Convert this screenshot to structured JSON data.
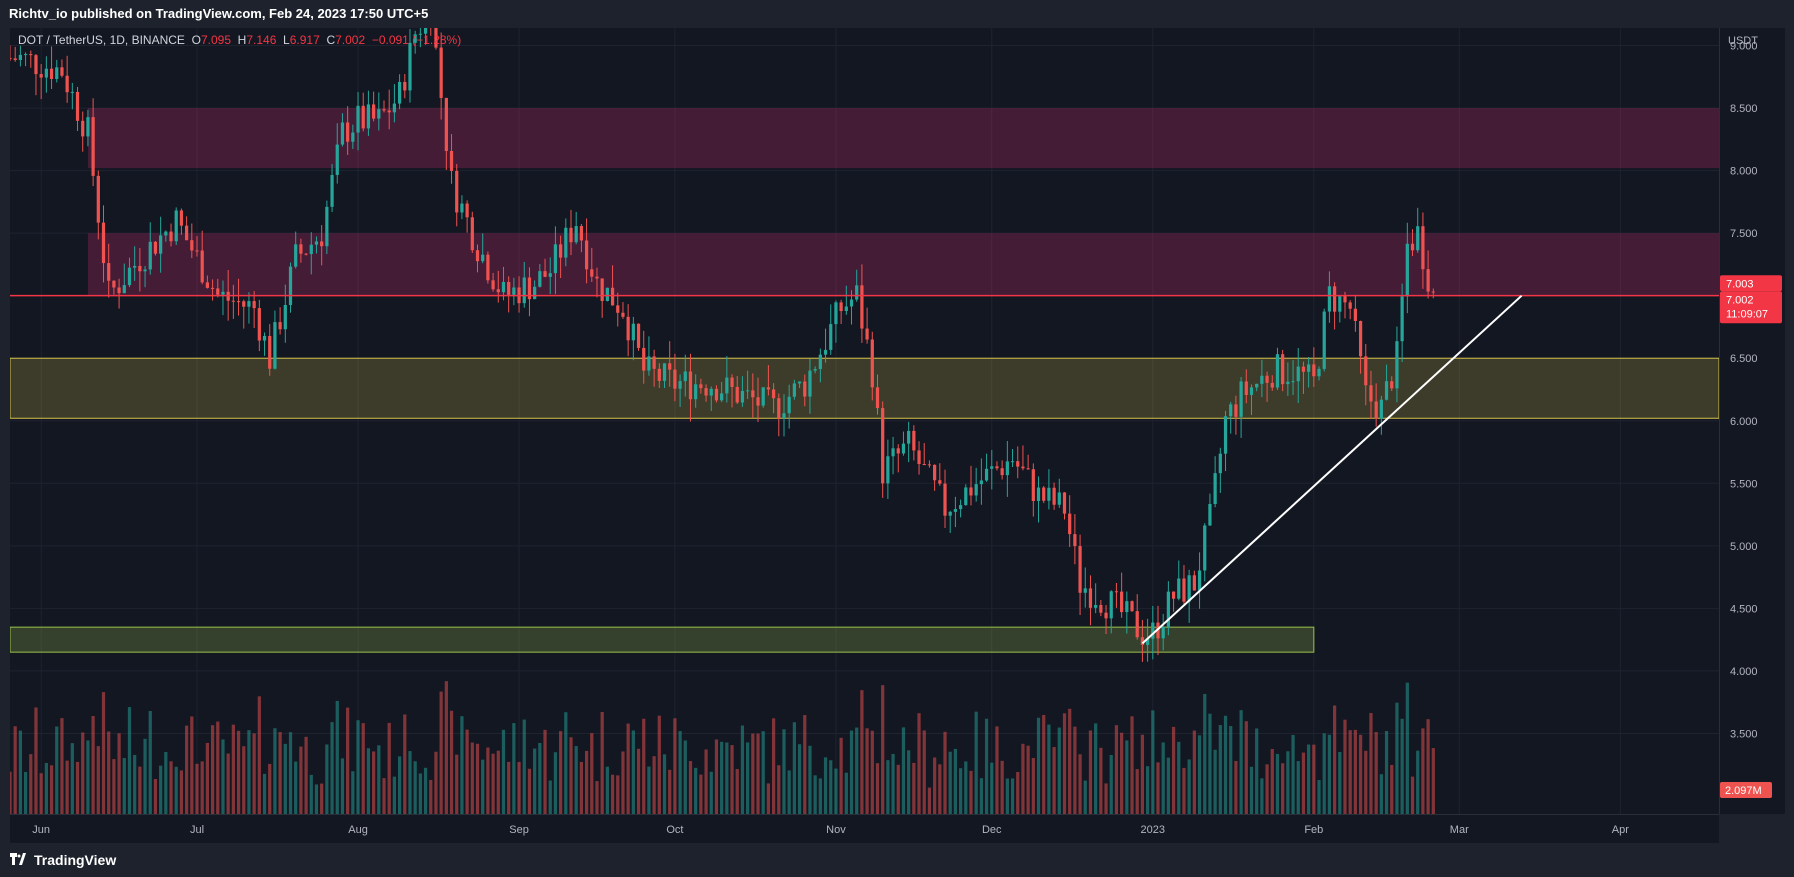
{
  "header": {
    "published_text": "Richtv_io published on TradingView.com, Feb 24, 2023 17:50 UTC+5"
  },
  "legend": {
    "symbol": "DOT / TetherUS, 1D, BINANCE",
    "open_label": "O",
    "open": "7.095",
    "high_label": "H",
    "high": "7.146",
    "low_label": "L",
    "low": "6.917",
    "close_label": "C",
    "close": "7.002",
    "change": "−0.091 (−1.28%)"
  },
  "price_scale": {
    "currency": "USDT",
    "last_price": "7.003",
    "current_price": "7.002",
    "countdown": "11:09:07",
    "volume_label": "2.097M"
  },
  "footer": {
    "brand": "TradingView"
  },
  "colors": {
    "up": "#26a69a",
    "down": "#ef5350",
    "resistance_zone": "#b2275f",
    "support_zone": "#d4c24a",
    "lower_zone": "#9ac14a",
    "price_line": "#f23645",
    "trendline": "#ffffff",
    "background": "#131722"
  },
  "chart_data": {
    "type": "candlestick",
    "symbol": "DOT / TetherUS",
    "interval": "1D",
    "exchange": "BINANCE",
    "y_axis": {
      "ticks": [
        "3.500",
        "4.000",
        "4.500",
        "5.000",
        "5.500",
        "6.000",
        "6.500",
        "7.000",
        "7.500",
        "8.000",
        "8.500",
        "9.000"
      ],
      "ylim": [
        3.0,
        9.3
      ],
      "unit": "USDT"
    },
    "x_axis": {
      "ticks": [
        "Jun",
        "Jul",
        "Aug",
        "Sep",
        "Oct",
        "Nov",
        "Dec",
        "2023",
        "Feb",
        "Mar",
        "Apr"
      ],
      "range": [
        "2022-05-26",
        "2023-04-20"
      ]
    },
    "price_anchors": [
      [
        "2022-05-28",
        8.9
      ],
      [
        "2022-06-05",
        8.8
      ],
      [
        "2022-06-10",
        8.3
      ],
      [
        "2022-06-14",
        7.0
      ],
      [
        "2022-06-20",
        7.3
      ],
      [
        "2022-06-27",
        7.6
      ],
      [
        "2022-07-01",
        7.3
      ],
      [
        "2022-07-05",
        7.0
      ],
      [
        "2022-07-12",
        6.9
      ],
      [
        "2022-07-15",
        6.5
      ],
      [
        "2022-07-20",
        7.3
      ],
      [
        "2022-07-25",
        7.5
      ],
      [
        "2022-07-29",
        8.3
      ],
      [
        "2022-08-01",
        8.4
      ],
      [
        "2022-08-05",
        8.4
      ],
      [
        "2022-08-09",
        8.6
      ],
      [
        "2022-08-12",
        9.1
      ],
      [
        "2022-08-15",
        9.3
      ],
      [
        "2022-08-19",
        7.9
      ],
      [
        "2022-08-24",
        7.4
      ],
      [
        "2022-08-29",
        7.0
      ],
      [
        "2022-09-04",
        7.1
      ],
      [
        "2022-09-07",
        7.2
      ],
      [
        "2022-09-12",
        7.6
      ],
      [
        "2022-09-16",
        7.1
      ],
      [
        "2022-09-21",
        6.9
      ],
      [
        "2022-09-25",
        6.4
      ],
      [
        "2022-10-01",
        6.3
      ],
      [
        "2022-10-08",
        6.3
      ],
      [
        "2022-10-14",
        6.2
      ],
      [
        "2022-10-20",
        6.1
      ],
      [
        "2022-10-26",
        6.3
      ],
      [
        "2022-11-02",
        6.9
      ],
      [
        "2022-11-05",
        7.0
      ],
      [
        "2022-11-08",
        6.4
      ],
      [
        "2022-11-10",
        5.6
      ],
      [
        "2022-11-15",
        5.8
      ],
      [
        "2022-11-22",
        5.3
      ],
      [
        "2022-11-28",
        5.5
      ],
      [
        "2022-12-05",
        5.7
      ],
      [
        "2022-12-10",
        5.4
      ],
      [
        "2022-12-15",
        5.3
      ],
      [
        "2022-12-18",
        4.7
      ],
      [
        "2022-12-25",
        4.5
      ],
      [
        "2022-12-30",
        4.3
      ],
      [
        "2023-01-01",
        4.3
      ],
      [
        "2023-01-05",
        4.6
      ],
      [
        "2023-01-09",
        4.7
      ],
      [
        "2023-01-12",
        5.2
      ],
      [
        "2023-01-15",
        6.0
      ],
      [
        "2023-01-18",
        6.2
      ],
      [
        "2023-01-24",
        6.4
      ],
      [
        "2023-01-28",
        6.4
      ],
      [
        "2023-02-01",
        6.3
      ],
      [
        "2023-02-04",
        7.0
      ],
      [
        "2023-02-08",
        6.9
      ],
      [
        "2023-02-11",
        6.2
      ],
      [
        "2023-02-14",
        6.1
      ],
      [
        "2023-02-17",
        6.5
      ],
      [
        "2023-02-19",
        7.4
      ],
      [
        "2023-02-21",
        7.5
      ],
      [
        "2023-02-24",
        7.0
      ]
    ],
    "volume_axis": {
      "max_label_scale": "relative"
    },
    "zones": [
      {
        "name": "resistance-upper",
        "from": 8.02,
        "to": 8.5,
        "x_start": "2022-06-10",
        "x_end": "2023-04-20"
      },
      {
        "name": "resistance-lower",
        "from": 7.0,
        "to": 7.5,
        "x_start": "2022-06-10",
        "x_end": "2023-04-20"
      },
      {
        "name": "support",
        "from": 6.02,
        "to": 6.5,
        "x_start": "2022-05-26",
        "x_end": "2023-04-20"
      },
      {
        "name": "lower-support",
        "from": 4.15,
        "to": 4.35,
        "x_start": "2022-05-26",
        "x_end": "2023-02-01"
      }
    ],
    "horizontal_line": 7.0,
    "trendline": {
      "x1": "2022-12-30",
      "y1": 4.22,
      "x2": "2023-03-13",
      "y2": 7.0
    }
  }
}
